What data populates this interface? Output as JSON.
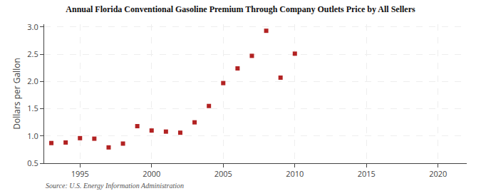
{
  "chart_data": {
    "type": "scatter",
    "title": "Annual Florida Conventional Gasoline Premium Through Company Outlets Price by All Sellers",
    "ylabel": "Dollars per Gallon",
    "annotations": [
      "Source: U.S. Energy Information Administration"
    ],
    "x": [
      1993,
      1994,
      1995,
      1996,
      1997,
      1998,
      1999,
      2000,
      2001,
      2002,
      2003,
      2004,
      2005,
      2006,
      2007,
      2008,
      2009,
      2010
    ],
    "values": [
      0.87,
      0.88,
      0.96,
      0.95,
      0.79,
      0.86,
      1.18,
      1.1,
      1.08,
      1.06,
      1.25,
      1.55,
      1.97,
      2.24,
      2.47,
      2.93,
      2.07,
      2.51
    ],
    "color": "#b22222",
    "marker": "square",
    "xlim": [
      1992.5,
      2022
    ],
    "ylim": [
      0.5,
      3.05
    ],
    "xticks": [
      1995,
      2000,
      2005,
      2010,
      2015,
      2020
    ],
    "yticks": [
      0.5,
      {
        "value": 1.0,
        "label": "1.0"
      },
      1.5,
      {
        "value": 2.0,
        "label": "2.0"
      },
      2.5,
      {
        "value": 3.0,
        "label": "3.0"
      }
    ],
    "grid": true
  }
}
